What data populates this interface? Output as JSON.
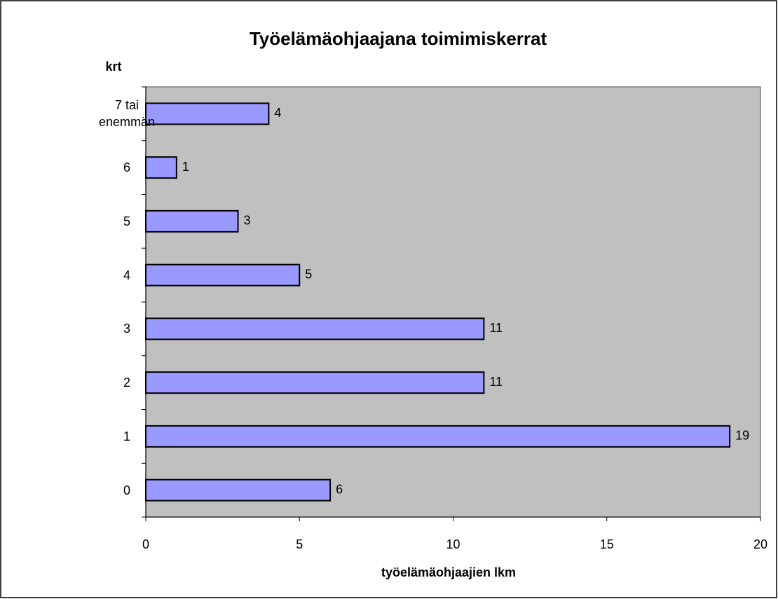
{
  "chart_data": {
    "type": "barh",
    "title": "Työelämäohjaajana toimimiskerrat",
    "y_label": "krt",
    "x_label": "työelämäohjaajien lkm",
    "categories": [
      "0",
      "1",
      "2",
      "3",
      "4",
      "5",
      "6",
      "7 tai enemmän"
    ],
    "values": [
      6,
      19,
      11,
      11,
      5,
      3,
      1,
      4
    ],
    "color": "#9999ff",
    "plot_background": "#c0c0c0",
    "xlim": [
      0,
      20
    ],
    "xticks": [
      0,
      5,
      10,
      15,
      20
    ],
    "grid": false
  }
}
